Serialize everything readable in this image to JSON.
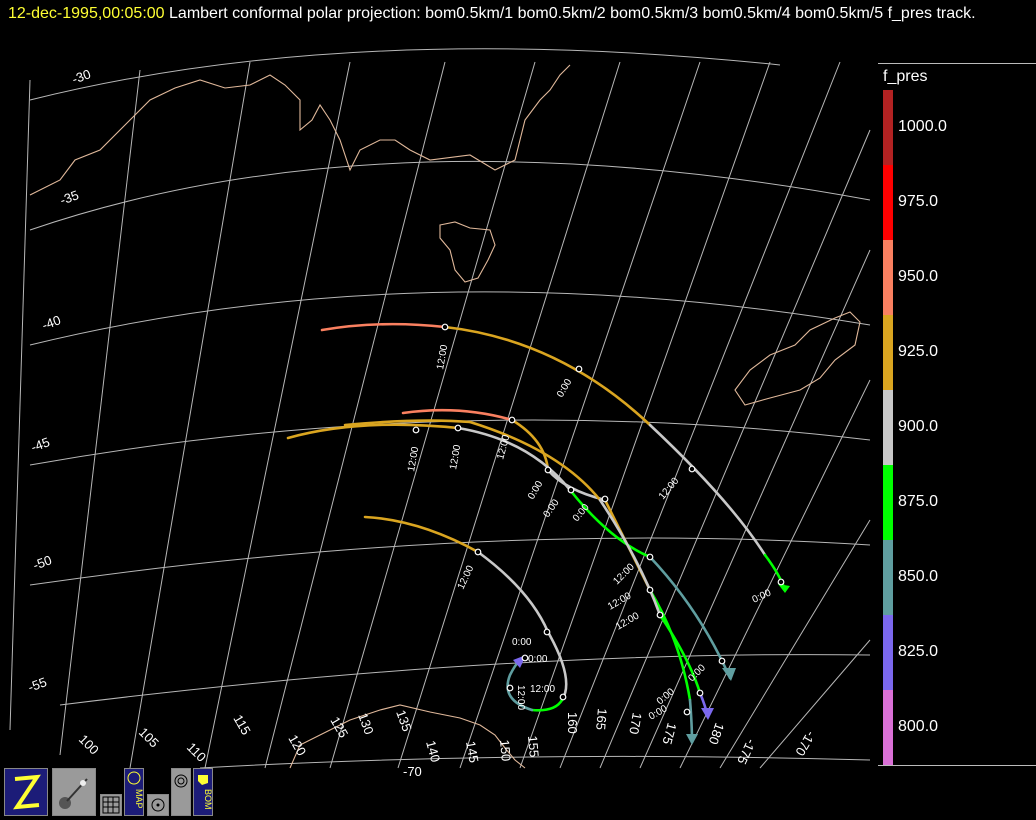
{
  "title": {
    "date": "12-dec-1995,00:05:00",
    "text": "  Lambert conformal polar projection:  bom0.5km/1 bom0.5km/2 bom0.5km/3 bom0.5km/4 bom0.5km/5 f_pres track."
  },
  "colorbar": {
    "title": "f_pres",
    "levels": [
      {
        "label": "1000.0",
        "color": "#b22222"
      },
      {
        "label": "975.0",
        "color": "#ff0000"
      },
      {
        "label": "950.0",
        "color": "#fa8060"
      },
      {
        "label": "925.0",
        "color": "#daa520"
      },
      {
        "label": "900.0",
        "color": "#c8c8c8"
      },
      {
        "label": "875.0",
        "color": "#00ff00"
      },
      {
        "label": "850.0",
        "color": "#5f9ea0"
      },
      {
        "label": "825.0",
        "color": "#7b68ee"
      },
      {
        "label": "800.0",
        "color": "#da70d6"
      }
    ]
  },
  "lat_labels": [
    "-30",
    "-35",
    "-40",
    "-45",
    "-50",
    "-55",
    "-70"
  ],
  "lon_labels": [
    "100",
    "105",
    "110",
    "115",
    "120",
    "125",
    "130",
    "135",
    "140",
    "145",
    "150",
    "155",
    "160",
    "165",
    "170",
    "175",
    "180",
    "-175",
    "-170"
  ],
  "time_labels": [
    "12:00",
    "0:00"
  ],
  "toolbar": {
    "icons": [
      "zeus-logo-icon",
      "satellite-icon",
      "grid-icon",
      "map-icon",
      "target-icon",
      "radar-icon",
      "bom-icon"
    ],
    "map_text": "MAP",
    "bom_text": "BOM"
  }
}
